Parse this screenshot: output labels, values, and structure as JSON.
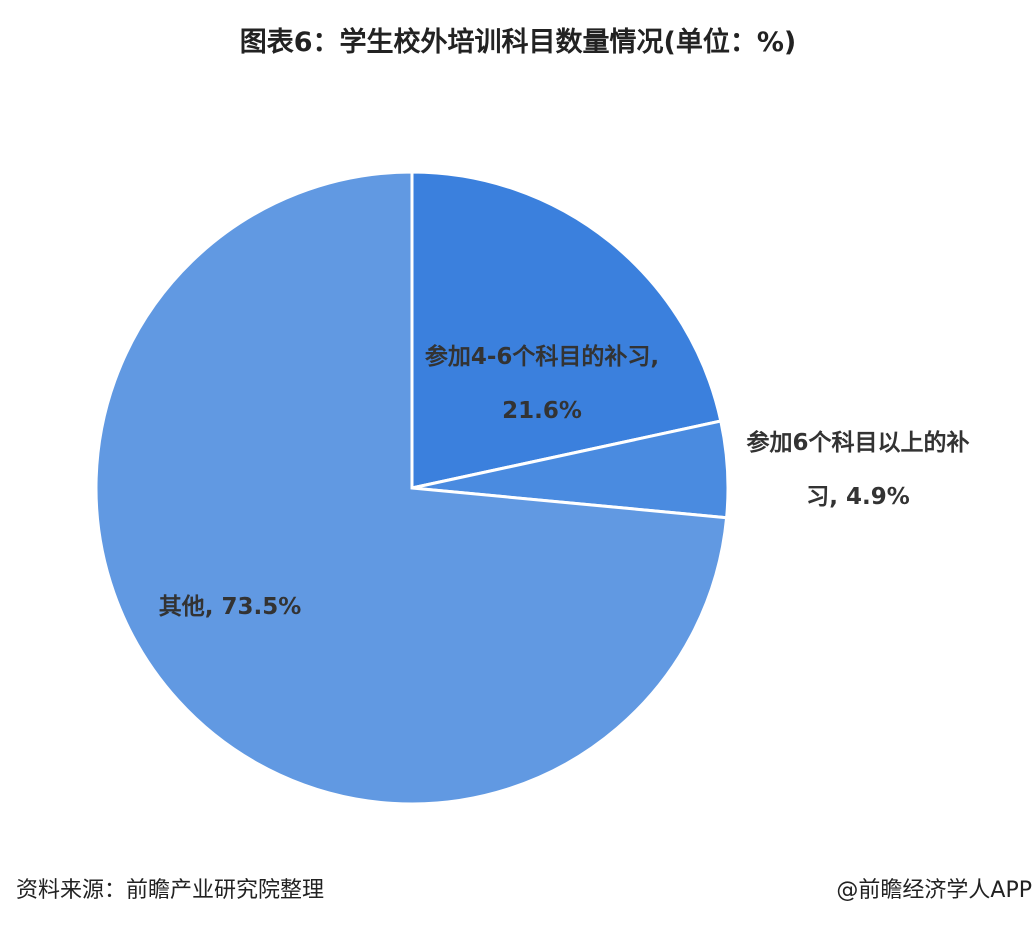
{
  "chart_data": {
    "type": "pie",
    "title": "图表6：学生校外培训科目数量情况(单位：%)",
    "values": [
      21.6,
      4.9,
      73.5
    ],
    "value_labels": [
      "参加4-6个科目的补习, 21.6%",
      "参加6个科目以上的补习, 4.9%",
      "其他, 73.5%"
    ],
    "colors": [
      "#3b80dd",
      "#4a8be0",
      "#6199e2"
    ],
    "source": "资料来源：前瞻产业研究院整理",
    "credit": "@前瞻经济学人APP"
  }
}
